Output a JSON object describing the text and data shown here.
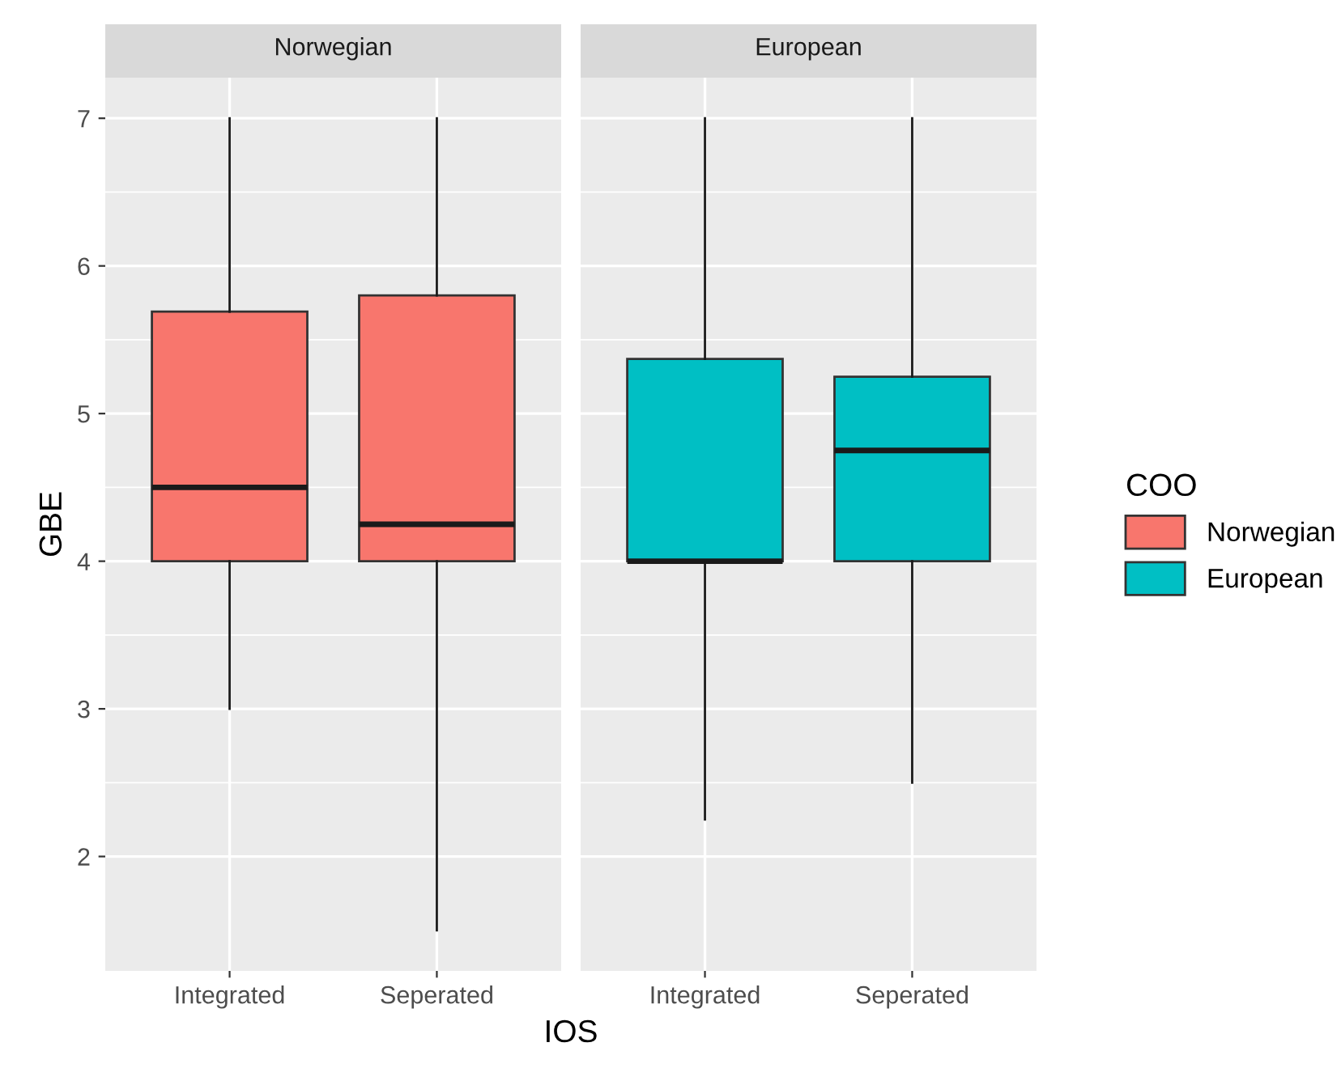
{
  "chart_data": [
    {
      "type": "box",
      "title": "Norwegian",
      "ylabel": "GBE",
      "xlabel": "IOS",
      "categories": [
        "Integrated",
        "Seperated"
      ],
      "ylim": [
        1.225,
        7.275
      ],
      "yticks": [
        2,
        3,
        4,
        5,
        6,
        7
      ],
      "grid": true,
      "series": [
        {
          "name": "Norwegian",
          "color": "#f8766d",
          "boxes": [
            {
              "low": 3,
              "q1": 4,
              "median": 4.5,
              "q3": 5.69,
              "high": 7
            },
            {
              "low": 1.5,
              "q1": 4,
              "median": 4.25,
              "q3": 5.8,
              "high": 7
            }
          ]
        }
      ]
    },
    {
      "type": "box",
      "title": "European",
      "legend_title": "COO",
      "legend": "right",
      "tick_labels": "x",
      "categories": [
        "Integrated",
        "Seperated"
      ],
      "ylim": [
        1.225,
        7.275
      ],
      "yticks": [
        2,
        3,
        4,
        5,
        6,
        7
      ],
      "grid": true,
      "series": [
        {
          "name": "European",
          "color": "#00bfc4",
          "boxes": [
            {
              "low": 2.25,
              "q1": 4,
              "median": 4,
              "q3": 5.37,
              "high": 7
            },
            {
              "low": 2.5,
              "q1": 4,
              "median": 4.75,
              "q3": 5.25,
              "high": 7
            }
          ]
        }
      ]
    }
  ]
}
